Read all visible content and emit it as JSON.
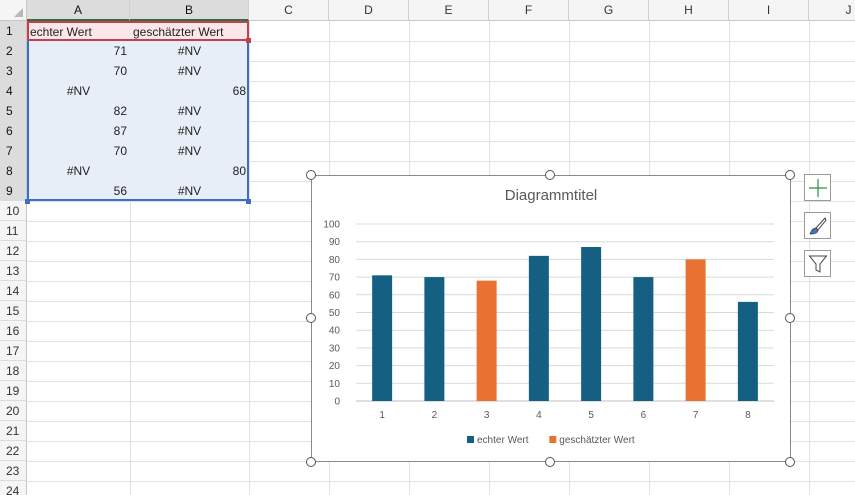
{
  "columns": [
    "A",
    "B",
    "C",
    "D",
    "E",
    "F",
    "G",
    "H",
    "I",
    "J"
  ],
  "rows": [
    "1",
    "2",
    "3",
    "4",
    "5",
    "6",
    "7",
    "8",
    "9",
    "10",
    "11",
    "12",
    "13",
    "14",
    "15",
    "16",
    "17",
    "18",
    "19",
    "20",
    "21",
    "22",
    "23",
    "24"
  ],
  "cells": {
    "A1": "echter Wert",
    "B1": "geschätzter Wert",
    "A2": "71",
    "B2": "#NV",
    "A3": "70",
    "B3": "#NV",
    "A4": "#NV",
    "B4": "68",
    "A5": "82",
    "B5": "#NV",
    "A6": "87",
    "B6": "#NV",
    "A7": "70",
    "B7": "#NV",
    "A8": "#NV",
    "B8": "80",
    "A9": "56",
    "B9": "#NV"
  },
  "chart_data": {
    "type": "bar",
    "title": "Diagrammtitel",
    "categories": [
      "1",
      "2",
      "3",
      "4",
      "5",
      "6",
      "7",
      "8"
    ],
    "series": [
      {
        "name": "echter Wert",
        "color": "#156082",
        "values": [
          71,
          70,
          null,
          82,
          87,
          70,
          null,
          56
        ]
      },
      {
        "name": "geschätzter Wert",
        "color": "#E97132",
        "values": [
          null,
          null,
          68,
          null,
          null,
          null,
          80,
          null
        ]
      }
    ],
    "ylim": [
      0,
      100
    ],
    "yticks": [
      "0",
      "10",
      "20",
      "30",
      "40",
      "50",
      "60",
      "70",
      "80",
      "90",
      "100"
    ],
    "grid": true,
    "legend": "bottom"
  },
  "side_buttons": [
    "chart-elements-plus-icon",
    "chart-styles-brush-icon",
    "chart-filter-funnel-icon"
  ],
  "colors": {
    "selection_red": "#C2414D",
    "selection_blue": "#3A6FC4",
    "series_blue": "#156082",
    "series_orange": "#E97132",
    "excel_green": "#2F6F3E"
  }
}
